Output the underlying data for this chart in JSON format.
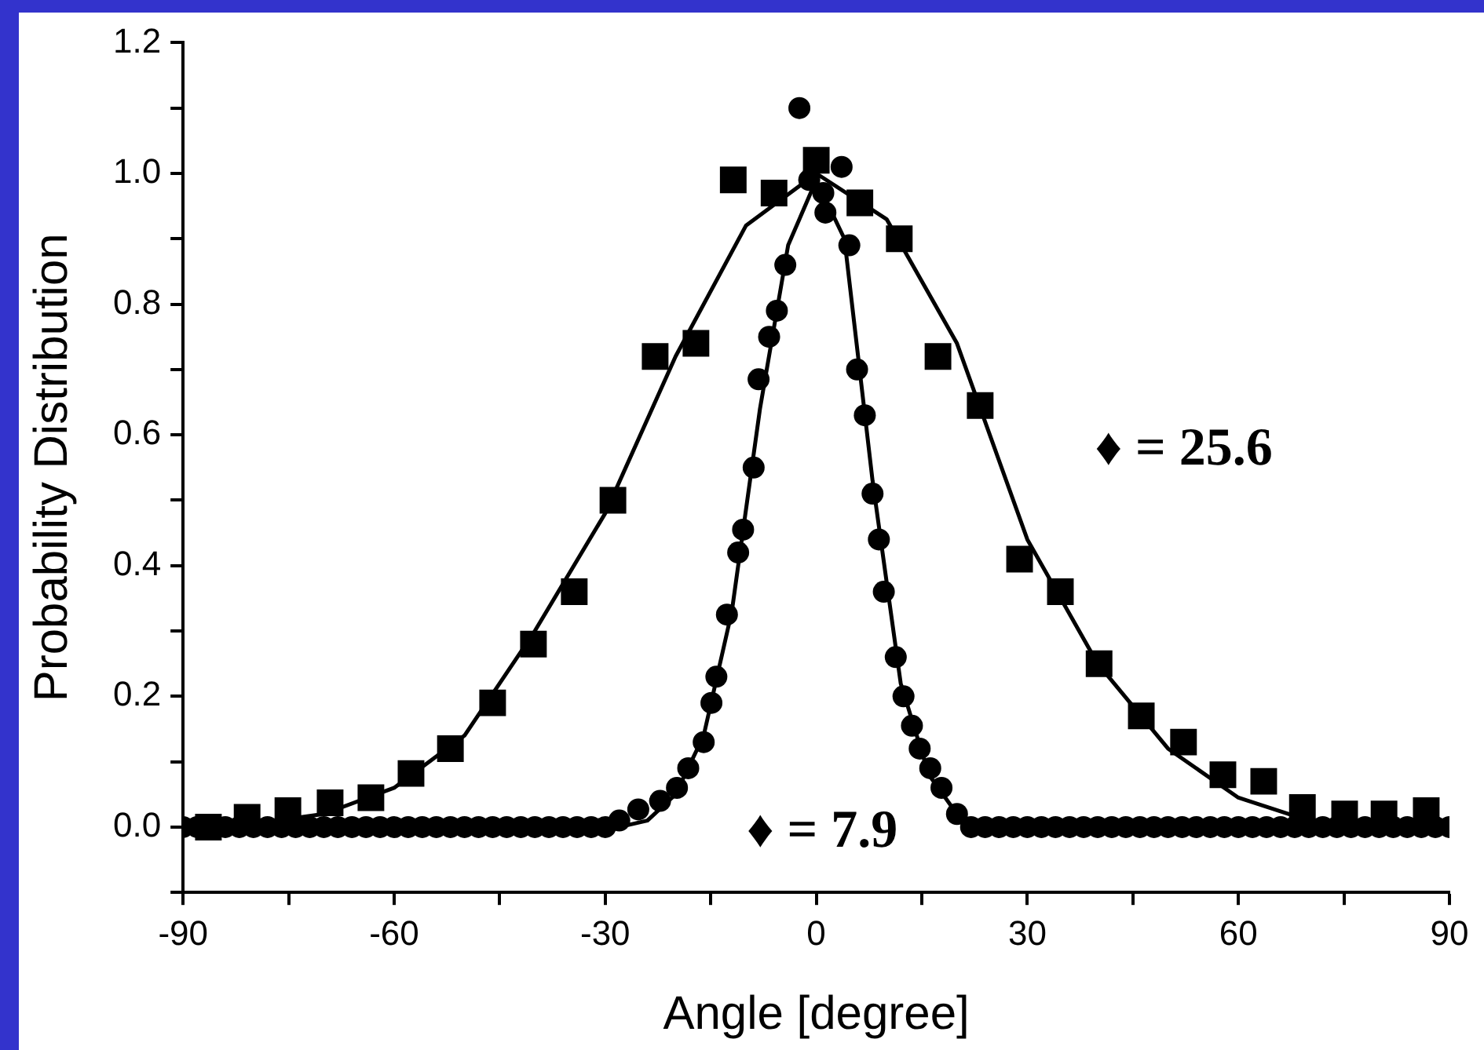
{
  "chart_data": {
    "type": "scatter",
    "xlabel": "Angle [degree]",
    "ylabel": "Probability Distribution",
    "xlim": [
      -90,
      90
    ],
    "ylim": [
      -0.1,
      1.2
    ],
    "xticks": [
      -90,
      {
        "value": -75,
        "label": null
      },
      -60,
      {
        "value": -45,
        "label": null
      },
      -30,
      {
        "value": -15,
        "label": null
      },
      0,
      {
        "value": 15,
        "label": null
      },
      30,
      {
        "value": 45,
        "label": null
      },
      60,
      {
        "value": 75,
        "label": null
      },
      90
    ],
    "yticks": [
      {
        "value": -0.1,
        "label": null
      },
      {
        "value": 0,
        "label": "0.0"
      },
      {
        "value": 0.1,
        "label": null
      },
      0.2,
      {
        "value": 0.3,
        "label": null
      },
      0.4,
      {
        "value": 0.5,
        "label": null
      },
      0.6,
      {
        "value": 0.7,
        "label": null
      },
      0.8,
      {
        "value": 0.9,
        "label": null
      },
      {
        "value": 1,
        "label": "1.0"
      },
      {
        "value": 1.1,
        "label": null
      },
      1.2
    ],
    "legend": false,
    "grid": false,
    "annotations": [
      "♦ = 25.6",
      "♦ = 7.9"
    ],
    "series": [
      {
        "type": "scatter",
        "marker": "square",
        "color": "#000000",
        "x": [
          -86.4,
          -80.9,
          -75.1,
          -69.1,
          -63.3,
          -57.6,
          -52.0,
          -46.0,
          -40.2,
          -34.4,
          -28.9,
          -22.9,
          -17.1,
          -11.8,
          -6.0,
          0,
          6.2,
          11.8,
          17.3,
          23.3,
          28.9,
          34.7,
          40.2,
          46.2,
          52.2,
          57.8,
          63.6,
          69.1,
          75.1,
          80.7,
          86.7
        ],
        "values": [
          0.0,
          0.015,
          0.025,
          0.037,
          0.045,
          0.082,
          0.12,
          0.19,
          0.28,
          0.36,
          0.5,
          0.72,
          0.74,
          0.99,
          0.97,
          1.02,
          0.955,
          0.9,
          0.72,
          0.645,
          0.41,
          0.36,
          0.25,
          0.17,
          0.13,
          0.08,
          0.07,
          0.03,
          0.02,
          0.02,
          0.025
        ]
      },
      {
        "type": "scatter",
        "marker": "circle",
        "color": "#000000",
        "x": [
          -90,
          -88,
          -84,
          -82,
          -80,
          -78,
          -76,
          -74,
          -72,
          -70,
          -68,
          -66,
          -64,
          -62,
          -60,
          -58,
          -56,
          -54,
          -52,
          -50,
          -48,
          -46,
          -44,
          -42,
          -40,
          -38,
          -36,
          -34,
          -32,
          -30,
          -28,
          -25.3,
          -22.2,
          -19.8,
          -18.2,
          -16.0,
          -14.9,
          -14.2,
          -12.7,
          -11.1,
          -10.4,
          -8.9,
          -8.2,
          -6.7,
          -5.6,
          -4.4,
          -2.4,
          -1,
          1,
          1.3,
          3.6,
          4.7,
          5.8,
          6.9,
          8.0,
          8.9,
          9.6,
          11.3,
          12.4,
          13.6,
          14.7,
          16.2,
          17.8,
          20,
          22,
          24,
          26,
          28,
          30,
          32,
          34,
          36,
          38,
          40,
          42,
          44,
          46,
          48,
          50,
          52,
          54,
          56,
          58,
          60,
          62,
          64,
          66,
          68,
          70,
          72,
          74,
          76,
          78,
          80,
          82,
          84,
          86,
          88,
          90
        ],
        "values": [
          0,
          0,
          0,
          0,
          0,
          0,
          0,
          0,
          0,
          0,
          0,
          0,
          0,
          0,
          0,
          0,
          0,
          0,
          0,
          0,
          0,
          0,
          0,
          0,
          0,
          0,
          0,
          0,
          0,
          0,
          0.01,
          0.027,
          0.04,
          0.06,
          0.09,
          0.13,
          0.19,
          0.23,
          0.325,
          0.42,
          0.455,
          0.55,
          0.685,
          0.75,
          0.79,
          0.86,
          1.1,
          0.99,
          0.97,
          0.94,
          1.01,
          0.89,
          0.7,
          0.63,
          0.51,
          0.44,
          0.36,
          0.26,
          0.2,
          0.155,
          0.12,
          0.09,
          0.06,
          0.02,
          0,
          0,
          0,
          0,
          0,
          0,
          0,
          0,
          0,
          0,
          0,
          0,
          0,
          0,
          0,
          0,
          0,
          0,
          0,
          0,
          0,
          0,
          0,
          0,
          0,
          0,
          0,
          0,
          0,
          0,
          0,
          0,
          0,
          0,
          0
        ]
      },
      {
        "type": "line",
        "marker": "none",
        "line_style": "solid",
        "color": "#000000",
        "x": [
          -90,
          -80,
          -70,
          -60,
          -50,
          -40,
          -30,
          -20,
          -10,
          0,
          10,
          20,
          30,
          40,
          50,
          60,
          70,
          80,
          90
        ],
        "values": [
          0.0,
          0.005,
          0.02,
          0.06,
          0.14,
          0.3,
          0.48,
          0.72,
          0.92,
          1.0,
          0.93,
          0.74,
          0.44,
          0.25,
          0.12,
          0.045,
          0.01,
          0.0,
          0.0
        ]
      },
      {
        "type": "line",
        "marker": "none",
        "line_style": "solid",
        "color": "#000000",
        "x": [
          -90,
          -28,
          -24,
          -20,
          -16,
          -12,
          -8,
          -4,
          0,
          4,
          8,
          12,
          16,
          20,
          24,
          90
        ],
        "values": [
          0,
          0,
          0.01,
          0.05,
          0.14,
          0.33,
          0.64,
          0.89,
          0.99,
          0.9,
          0.53,
          0.22,
          0.08,
          0.02,
          0,
          0
        ]
      }
    ]
  }
}
